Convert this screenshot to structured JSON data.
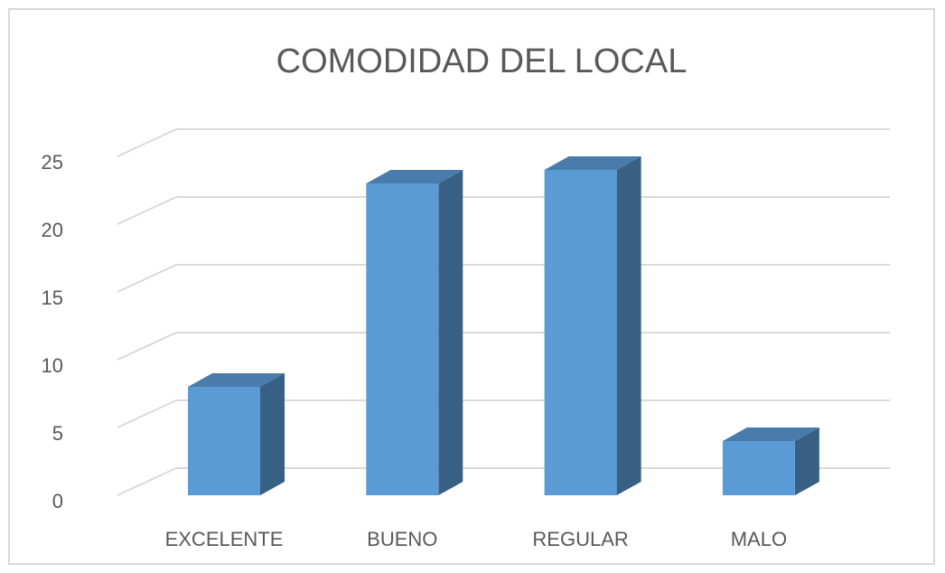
{
  "chart_data": {
    "type": "bar3d",
    "title": "COMODIDAD DEL LOCAL",
    "categories": [
      "EXCELENTE",
      "BUENO",
      "REGULAR",
      "MALO"
    ],
    "values": [
      8,
      23,
      24,
      4
    ],
    "color": "#5b9bd5",
    "ylim": [
      0,
      25
    ],
    "yticks": [
      0,
      5,
      10,
      15,
      20,
      25
    ],
    "grid": true
  }
}
